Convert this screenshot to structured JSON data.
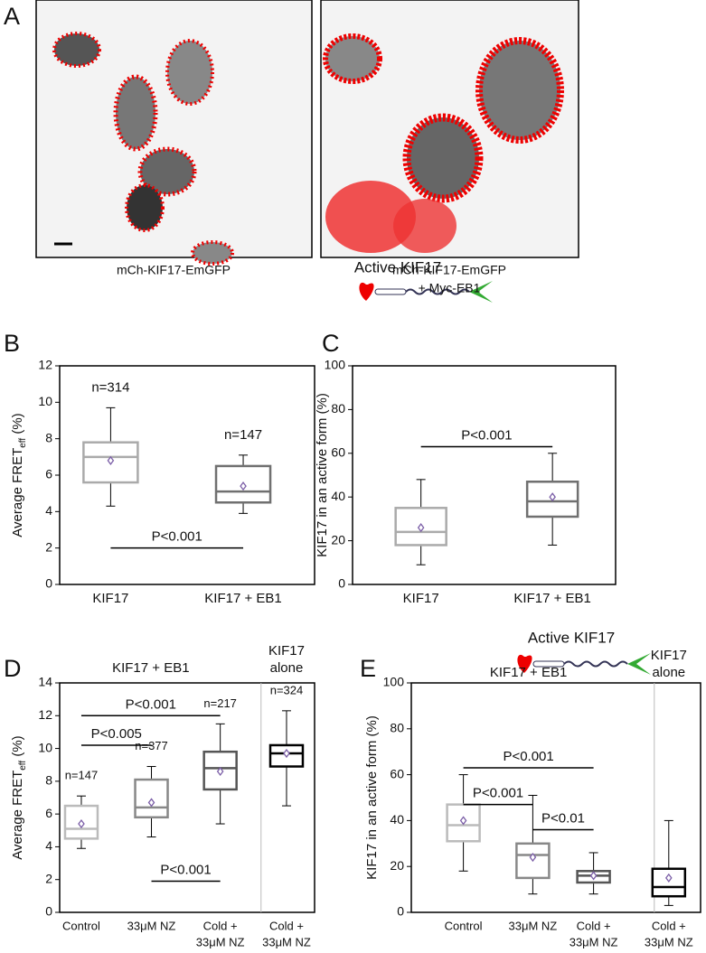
{
  "panel_labels": [
    "A",
    "B",
    "C",
    "D",
    "E"
  ],
  "images": [
    {
      "caption": [
        "mCh-KIF17-EmGFP"
      ]
    },
    {
      "caption": [
        "mCh-KIF17-EmGFP",
        "+ Myc-EB1"
      ]
    }
  ],
  "chart_data": [
    {
      "type": "box",
      "ylabel": [
        "Average FRET",
        "eff",
        " (%)"
      ],
      "categories": [
        [
          "KIF17"
        ],
        [
          "KIF17 + EB1"
        ]
      ],
      "boxes": [
        {
          "min": 4.3,
          "q1": 5.6,
          "median": 7.0,
          "q3": 7.8,
          "max": 9.7,
          "mean": 6.8
        },
        {
          "min": 3.9,
          "q1": 4.5,
          "median": 5.1,
          "q3": 6.5,
          "max": 7.1,
          "mean": 5.4
        }
      ],
      "colors": [
        "#aaaaaa",
        "#707070"
      ],
      "mean_color": "#7b5ea7",
      "ylim": [
        0,
        12
      ],
      "yticks": [
        0,
        2,
        4,
        6,
        8,
        10,
        12
      ],
      "n_labels": [
        "n=314",
        "n=147"
      ],
      "comparisons": [
        {
          "label": "P<0.001",
          "between": [
            0,
            1
          ],
          "y": 2
        }
      ]
    },
    {
      "type": "box",
      "title": "Active KIF17",
      "ylabel": [
        "KIF17 in an active form (%)"
      ],
      "categories": [
        [
          "KIF17"
        ],
        [
          "KIF17 + EB1"
        ]
      ],
      "boxes": [
        {
          "min": 9,
          "q1": 18,
          "median": 24,
          "q3": 35,
          "max": 48,
          "mean": 26
        },
        {
          "min": 18,
          "q1": 31,
          "median": 38,
          "q3": 47,
          "max": 60,
          "mean": 40
        }
      ],
      "colors": [
        "#aaaaaa",
        "#707070"
      ],
      "mean_color": "#7b5ea7",
      "ylim": [
        0,
        100
      ],
      "yticks": [
        0,
        20,
        40,
        60,
        80,
        100
      ],
      "comparisons": [
        {
          "label": "P<0.001",
          "between": [
            0,
            1
          ],
          "y": 63
        }
      ]
    },
    {
      "type": "box",
      "ylabel": [
        "Average FRET",
        "eff",
        " (%)"
      ],
      "categories": [
        [
          "Control"
        ],
        [
          "33μM NZ"
        ],
        [
          "Cold +",
          "33μM NZ"
        ],
        [
          "Cold +",
          "33μM NZ"
        ]
      ],
      "groups": [
        {
          "label": [
            "KIF17 + EB1"
          ],
          "between": [
            0,
            2
          ]
        },
        {
          "label": [
            "KIF17",
            "alone"
          ],
          "between": [
            3,
            3
          ]
        }
      ],
      "boxes": [
        {
          "min": 3.9,
          "q1": 4.5,
          "median": 5.1,
          "q3": 6.5,
          "max": 7.1,
          "mean": 5.4
        },
        {
          "min": 4.6,
          "q1": 5.8,
          "median": 6.4,
          "q3": 8.1,
          "max": 8.9,
          "mean": 6.7
        },
        {
          "min": 5.4,
          "q1": 7.5,
          "median": 8.8,
          "q3": 9.8,
          "max": 11.5,
          "mean": 8.6
        },
        {
          "min": 6.5,
          "q1": 8.9,
          "median": 9.7,
          "q3": 10.2,
          "max": 12.3,
          "mean": 9.7
        }
      ],
      "colors": [
        "#bbbbbb",
        "#888888",
        "#555555",
        "#000000"
      ],
      "mean_color": "#7b5ea7",
      "ylim": [
        0,
        14
      ],
      "yticks": [
        0,
        2,
        4,
        6,
        8,
        10,
        12,
        14
      ],
      "n_labels": [
        "n=147",
        "n=377",
        "n=217",
        "n=324"
      ],
      "comparisons": [
        {
          "label": "P<0.001",
          "between": [
            0,
            2
          ],
          "y": 12
        },
        {
          "label": "P<0.005",
          "between": [
            0,
            1
          ],
          "y": 10.2
        },
        {
          "label": "P<0.001",
          "between": [
            1,
            2
          ],
          "y": 1.9
        }
      ]
    },
    {
      "type": "box",
      "title": "Active KIF17",
      "ylabel": [
        "KIF17 in an active form (%)"
      ],
      "categories": [
        [
          "Control"
        ],
        [
          "33μM NZ"
        ],
        [
          "Cold +",
          "33μM NZ"
        ],
        [
          "Cold +",
          "33μM NZ"
        ]
      ],
      "groups": [
        {
          "label": [
            "KIF17 + EB1"
          ],
          "between": [
            0,
            2
          ]
        },
        {
          "label": [
            "KIF17",
            "alone"
          ],
          "between": [
            3,
            3
          ]
        }
      ],
      "boxes": [
        {
          "min": 18,
          "q1": 31,
          "median": 38,
          "q3": 47,
          "max": 60,
          "mean": 40
        },
        {
          "min": 8,
          "q1": 15,
          "median": 25,
          "q3": 30,
          "max": 51,
          "mean": 24
        },
        {
          "min": 8,
          "q1": 13,
          "median": 16,
          "q3": 18,
          "max": 26,
          "mean": 16
        },
        {
          "min": 3,
          "q1": 7,
          "median": 11,
          "q3": 19,
          "max": 40,
          "mean": 15
        }
      ],
      "colors": [
        "#bbbbbb",
        "#888888",
        "#555555",
        "#000000"
      ],
      "mean_color": "#7b5ea7",
      "ylim": [
        0,
        100
      ],
      "yticks": [
        0,
        20,
        40,
        60,
        80,
        100
      ],
      "comparisons": [
        {
          "label": "P<0.001",
          "between": [
            0,
            2
          ],
          "y": 63
        },
        {
          "label": "P<0.001",
          "between": [
            0,
            1
          ],
          "y": 47
        },
        {
          "label": "P<0.01",
          "between": [
            1,
            2
          ],
          "y": 36
        }
      ]
    }
  ]
}
